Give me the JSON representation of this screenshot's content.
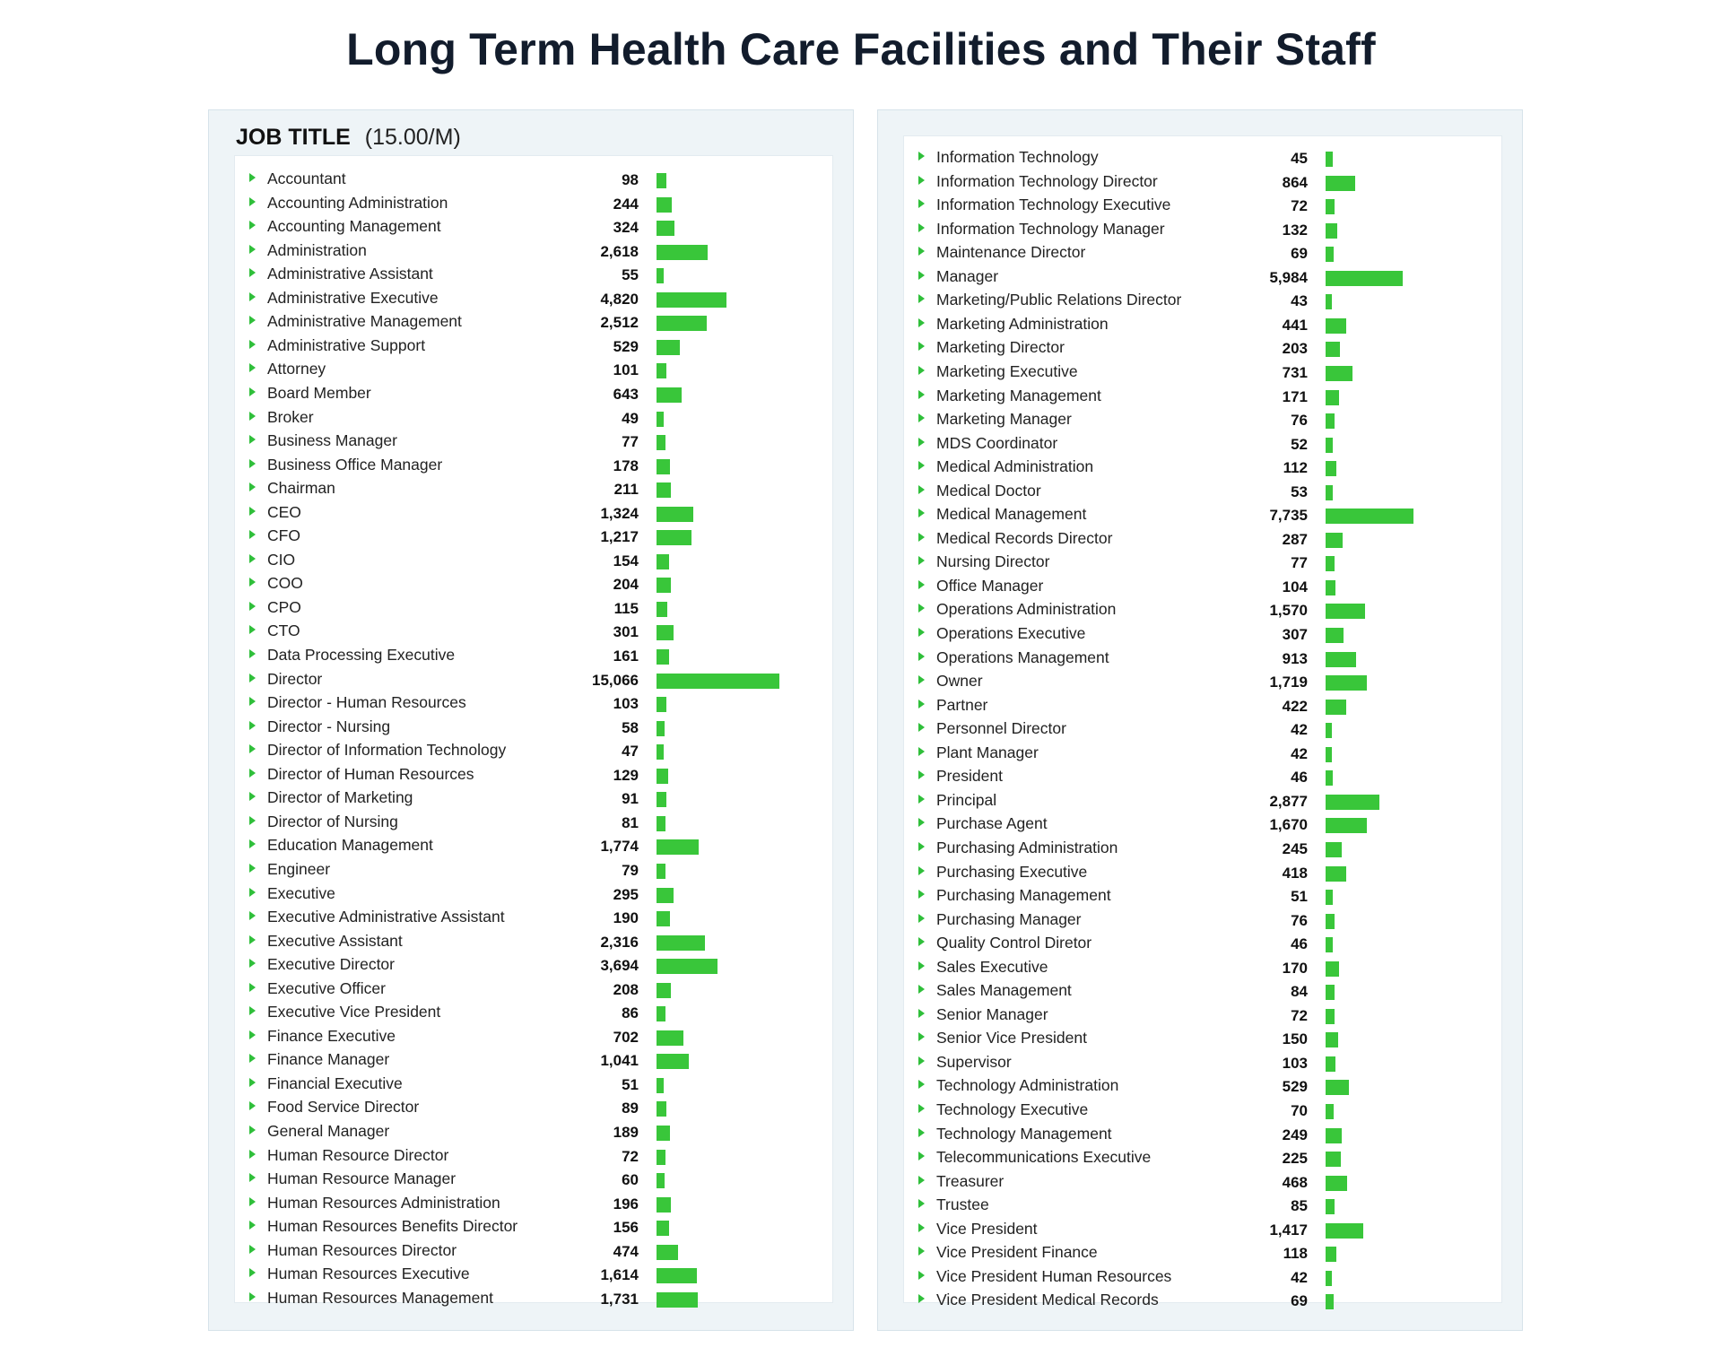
{
  "title": "Long Term Health Care Facilities and Their Staff",
  "panel_left": {
    "header_title": "JOB TITLE",
    "header_unit": "(15.00/M)"
  },
  "colors": {
    "bar": "#39c63a",
    "arrow": "#2fbf3a",
    "panel_bg": "#eef4f7"
  },
  "icons": {
    "row_marker": "triangle-right-icon"
  },
  "chart_data": {
    "type": "bar",
    "orientation": "horizontal",
    "title": "Long Term Health Care Facilities and Their Staff",
    "xlim": [
      0,
      15066
    ],
    "panels": [
      {
        "categories": [
          "Accountant",
          "Accounting Administration",
          "Accounting Management",
          "Administration",
          "Administrative Assistant",
          "Administrative Executive",
          "Administrative Management",
          "Administrative Support",
          "Attorney",
          "Board Member",
          "Broker",
          "Business Manager",
          "Business Office Manager",
          "Chairman",
          "CEO",
          "CFO",
          "CIO",
          "COO",
          "CPO",
          "CTO",
          "Data Processing Executive",
          "Director",
          "Director - Human Resources",
          "Director - Nursing",
          "Director of Information Technology",
          "Director of Human Resources",
          "Director of Marketing",
          "Director of Nursing",
          "Education Management",
          "Engineer",
          "Executive",
          "Executive Administrative Assistant",
          "Executive Assistant",
          "Executive Director",
          "Executive Officer",
          "Executive Vice President",
          "Finance Executive",
          "Finance Manager",
          "Financial Executive",
          "Food Service Director",
          "General Manager",
          "Human Resource Director",
          "Human Resource Manager",
          "Human Resources Administration",
          "Human Resources Benefits Director",
          "Human Resources Director",
          "Human Resources Executive",
          "Human Resources Management"
        ],
        "values": [
          98,
          244,
          324,
          2618,
          55,
          4820,
          2512,
          529,
          101,
          643,
          49,
          77,
          178,
          211,
          1324,
          1217,
          154,
          204,
          115,
          301,
          161,
          15066,
          103,
          58,
          47,
          129,
          91,
          81,
          1774,
          79,
          295,
          190,
          2316,
          3694,
          208,
          86,
          702,
          1041,
          51,
          89,
          189,
          72,
          60,
          196,
          156,
          474,
          1614,
          1731
        ],
        "labels": [
          "98",
          "244",
          "324",
          "2,618",
          "55",
          "4,820",
          "2,512",
          "529",
          "101",
          "643",
          "49",
          "77",
          "178",
          "211",
          "1,324",
          "1,217",
          "154",
          "204",
          "115",
          "301",
          "161",
          "15,066",
          "103",
          "58",
          "47",
          "129",
          "91",
          "81",
          "1,774",
          "79",
          "295",
          "190",
          "2,316",
          "3,694",
          "208",
          "86",
          "702",
          "1,041",
          "51",
          "89",
          "189",
          "72",
          "60",
          "196",
          "156",
          "474",
          "1,614",
          "1,731"
        ]
      },
      {
        "categories": [
          "Information Technology",
          "Information Technology Director",
          "Information Technology Executive",
          "Information Technology Manager",
          "Maintenance Director",
          "Manager",
          "Marketing/Public Relations Director",
          "Marketing Administration",
          "Marketing Director",
          "Marketing Executive",
          "Marketing Management",
          "Marketing Manager",
          "MDS Coordinator",
          "Medical Administration",
          "Medical Doctor",
          "Medical Management",
          "Medical Records Director",
          "Nursing Director",
          "Office Manager",
          "Operations Administration",
          "Operations Executive",
          "Operations Management",
          "Owner",
          "Partner",
          "Personnel Director",
          "Plant Manager",
          "President",
          "Principal",
          "Purchase Agent",
          "Purchasing Administration",
          "Purchasing Executive",
          "Purchasing Management",
          "Purchasing Manager",
          "Quality Control Diretor",
          "Sales Executive",
          "Sales Management",
          "Senior Manager",
          "Senior Vice President",
          "Supervisor",
          "Technology Administration",
          "Technology Executive",
          "Technology Management",
          "Telecommunications Executive",
          "Treasurer",
          "Trustee",
          "Vice President",
          "Vice President Finance",
          "Vice President Human Resources",
          "Vice President Medical Records"
        ],
        "values": [
          45,
          864,
          72,
          132,
          69,
          5984,
          43,
          441,
          203,
          731,
          171,
          76,
          52,
          112,
          53,
          7735,
          287,
          77,
          104,
          1570,
          307,
          913,
          1719,
          422,
          42,
          42,
          46,
          2877,
          1670,
          245,
          418,
          51,
          76,
          46,
          170,
          84,
          72,
          150,
          103,
          529,
          70,
          249,
          225,
          468,
          85,
          1417,
          118,
          42,
          69
        ],
        "labels": [
          "45",
          "864",
          "72",
          "132",
          "69",
          "5,984",
          "43",
          "441",
          "203",
          "731",
          "171",
          "76",
          "52",
          "112",
          "53",
          "7,735",
          "287",
          "77",
          "104",
          "1,570",
          "307",
          "913",
          "1,719",
          "422",
          "42",
          "42",
          "46",
          "2,877",
          "1,670",
          "245",
          "418",
          "51",
          "76",
          "46",
          "170",
          "84",
          "72",
          "150",
          "103",
          "529",
          "70",
          "249",
          "225",
          "468",
          "85",
          "1,417",
          "118",
          "42",
          "69"
        ]
      }
    ]
  }
}
